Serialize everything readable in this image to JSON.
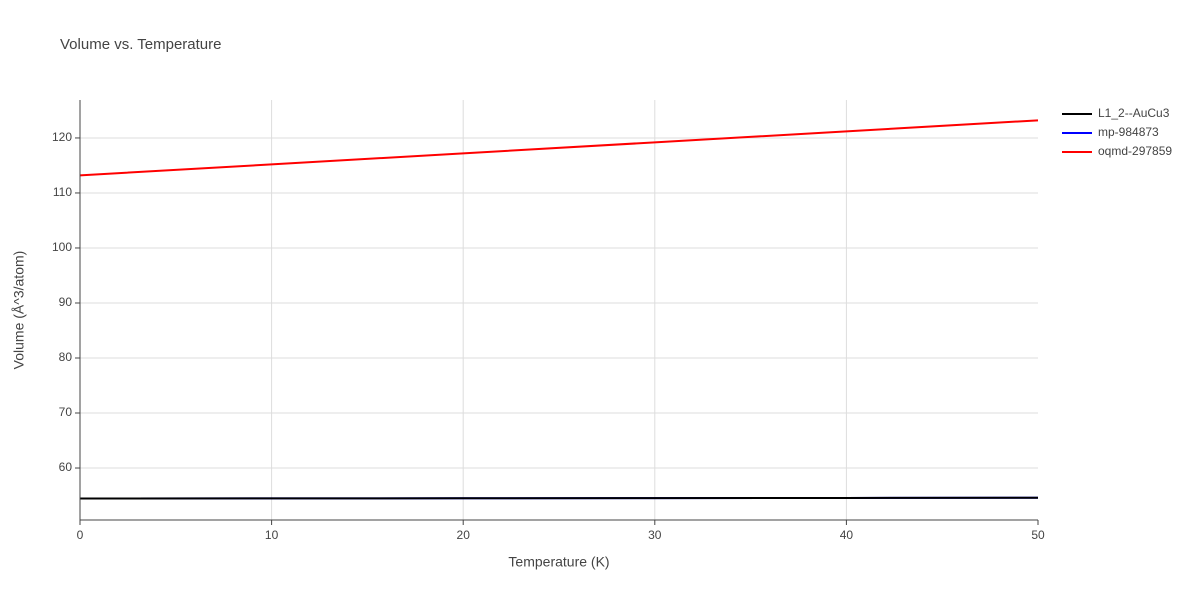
{
  "chart_data": {
    "type": "line",
    "title": "Volume vs. Temperature",
    "x_label": "Temperature (K)",
    "y_label": "Volume (Å^3/atom)",
    "x": [
      0,
      10,
      20,
      30,
      40,
      50
    ],
    "series": [
      {
        "name": "L1_2--AuCu3",
        "color": "#000000",
        "values": [
          54.45,
          54.48,
          54.5,
          54.53,
          54.56,
          54.6
        ]
      },
      {
        "name": "mp-984873",
        "color": "#0000ff",
        "values": [
          54.45,
          54.48,
          54.5,
          54.53,
          54.56,
          54.6
        ]
      },
      {
        "name": "oqmd-297859",
        "color": "#ff0000",
        "values": [
          113.2,
          115.2,
          117.2,
          119.2,
          121.2,
          123.2
        ]
      }
    ],
    "xlim": [
      0,
      50
    ],
    "xticks": [
      0,
      10,
      20,
      30,
      40,
      50
    ],
    "ylim": [
      50.55,
      126.9
    ],
    "yticks": [
      60,
      70,
      80,
      90,
      100,
      110,
      120
    ],
    "grid": true,
    "legend": "right"
  }
}
